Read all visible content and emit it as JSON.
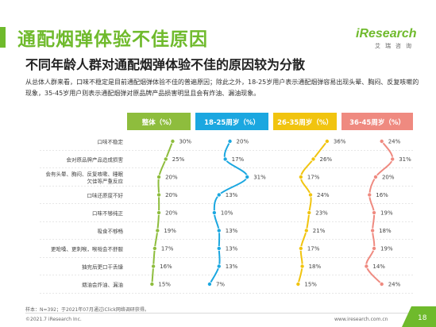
{
  "header": {
    "title": "通配烟弹体验不佳原因",
    "subtitle": "不同年龄人群对通配烟弹体验不佳的原因较为分散",
    "intro": "从总体人群来看，口味不稳定是目前通配烟弹体验不佳的普遍原因；除此之外，18-25岁用户表示通配烟弹容易出现头晕、胸闷、反复咳嗽的现象，35-45岁用户则表示通配烟弹对原品牌产品损害明显且会有炸油、漏油现象。"
  },
  "logo": {
    "main": "iResearch",
    "sub": "艾瑞咨询"
  },
  "colors": {
    "brand": "#6fba2c",
    "overall": "#8ebd3d",
    "age_18_25": "#1ba7e0",
    "age_26_35": "#f1c40f",
    "age_36_45": "#ef8a80"
  },
  "chart_data": {
    "type": "line",
    "categories": [
      "口味不稳定",
      "会对原品牌产品造成损害",
      "会有头晕、胸闷、反复咳嗽、睡眠欠佳等严重反应",
      "口味还原度不好",
      "口味不够纯正",
      "吸食不够畅",
      "更呛嗓、更刺喉，喉咙会不舒服",
      "抽完后更口干舌燥",
      "烟油会炸油、漏油"
    ],
    "category_lines": [
      [
        "口味不稳定"
      ],
      [
        "会对原品牌产品造成损害"
      ],
      [
        "会有头晕、胸闷、反复咳嗽、睡眠",
        "欠佳等严重反应"
      ],
      [
        "口味还原度不好"
      ],
      [
        "口味不够纯正"
      ],
      [
        "吸食不够畅"
      ],
      [
        "更呛嗓、更刺喉，喉咙会不舒服"
      ],
      [
        "抽完后更口干舌燥"
      ],
      [
        "烟油会炸油、漏油"
      ]
    ],
    "series": [
      {
        "name": "整体（%）",
        "values": [
          30,
          25,
          20,
          20,
          20,
          19,
          17,
          16,
          15
        ],
        "labels": [
          "30%",
          "25%",
          "20%",
          "20%",
          "20%",
          "19%",
          "17%",
          "16%",
          "15%"
        ]
      },
      {
        "name": "18-25周岁（%）",
        "values": [
          20,
          17,
          31,
          13,
          10,
          13,
          13,
          13,
          7
        ],
        "labels": [
          "20%",
          "17%",
          "31%",
          "13%",
          "10%",
          "13%",
          "13%",
          "13%",
          "7%"
        ]
      },
      {
        "name": "26-35周岁（%）",
        "values": [
          36,
          26,
          17,
          24,
          23,
          21,
          17,
          18,
          15
        ],
        "labels": [
          "36%",
          "26%",
          "17%",
          "24%",
          "23%",
          "21%",
          "17%",
          "18%",
          "15%"
        ]
      },
      {
        "name": "36-45周岁（%）",
        "values": [
          24,
          31,
          20,
          16,
          19,
          18,
          19,
          14,
          24
        ],
        "labels": [
          "24%",
          "31%",
          "20%",
          "16%",
          "19%",
          "18%",
          "19%",
          "14%",
          "24%"
        ]
      }
    ]
  },
  "footer": {
    "footnote": "样本：N=392；于2021年07月通过iClick网络调研获得。",
    "copyright": "©2021.7 iResearch Inc.",
    "website": "www.iresearch.com.cn",
    "page": "18"
  }
}
